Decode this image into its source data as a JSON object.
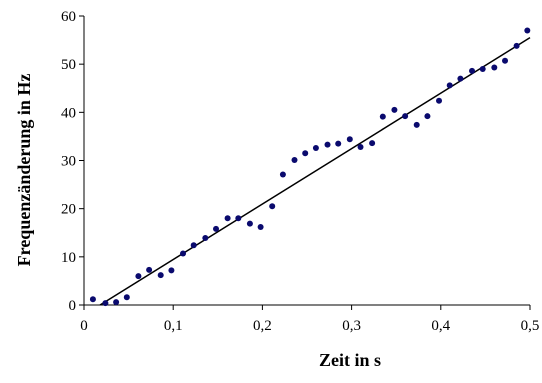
{
  "chart_data": {
    "type": "scatter",
    "xlabel": "Zeit in s",
    "ylabel": "Frequenzänderung in Hz",
    "xlim": [
      0,
      0.5
    ],
    "ylim": [
      0,
      60
    ],
    "x_ticks": [
      "0",
      "0,1",
      "0,2",
      "0,3",
      "0,4",
      "0,5"
    ],
    "y_ticks": [
      "0",
      "10",
      "20",
      "30",
      "40",
      "50",
      "60"
    ],
    "grid": false,
    "legend": "none",
    "colors": {
      "points": "#0a0a6e",
      "line": "#000000",
      "axis": "#000000"
    },
    "series": [
      {
        "values": [
          {
            "x": 0.01,
            "y": 1.2
          },
          {
            "x": 0.024,
            "y": 0.4
          },
          {
            "x": 0.036,
            "y": 0.6
          },
          {
            "x": 0.048,
            "y": 1.6
          },
          {
            "x": 0.061,
            "y": 6.0
          },
          {
            "x": 0.073,
            "y": 7.3
          },
          {
            "x": 0.086,
            "y": 6.2
          },
          {
            "x": 0.098,
            "y": 7.2
          },
          {
            "x": 0.111,
            "y": 10.7
          },
          {
            "x": 0.123,
            "y": 12.4
          },
          {
            "x": 0.136,
            "y": 13.9
          },
          {
            "x": 0.148,
            "y": 15.8
          },
          {
            "x": 0.161,
            "y": 18.0
          },
          {
            "x": 0.173,
            "y": 18.0
          },
          {
            "x": 0.186,
            "y": 16.9
          },
          {
            "x": 0.198,
            "y": 16.2
          },
          {
            "x": 0.211,
            "y": 20.5
          },
          {
            "x": 0.223,
            "y": 27.1
          },
          {
            "x": 0.236,
            "y": 30.1
          },
          {
            "x": 0.248,
            "y": 31.5
          },
          {
            "x": 0.26,
            "y": 32.6
          },
          {
            "x": 0.273,
            "y": 33.3
          },
          {
            "x": 0.285,
            "y": 33.5
          },
          {
            "x": 0.298,
            "y": 34.4
          },
          {
            "x": 0.31,
            "y": 32.8
          },
          {
            "x": 0.323,
            "y": 33.6
          },
          {
            "x": 0.335,
            "y": 39.1
          },
          {
            "x": 0.348,
            "y": 40.5
          },
          {
            "x": 0.36,
            "y": 39.2
          },
          {
            "x": 0.373,
            "y": 37.4
          },
          {
            "x": 0.385,
            "y": 39.2
          },
          {
            "x": 0.398,
            "y": 42.4
          },
          {
            "x": 0.41,
            "y": 45.6
          },
          {
            "x": 0.422,
            "y": 47.0
          },
          {
            "x": 0.435,
            "y": 48.6
          },
          {
            "x": 0.447,
            "y": 49.0
          },
          {
            "x": 0.46,
            "y": 49.3
          },
          {
            "x": 0.472,
            "y": 50.7
          },
          {
            "x": 0.485,
            "y": 53.8
          },
          {
            "x": 0.497,
            "y": 57.0
          }
        ]
      }
    ],
    "trendline": {
      "x1": 0.018,
      "y1": 0,
      "x2": 0.5,
      "y2": 55.5
    }
  }
}
